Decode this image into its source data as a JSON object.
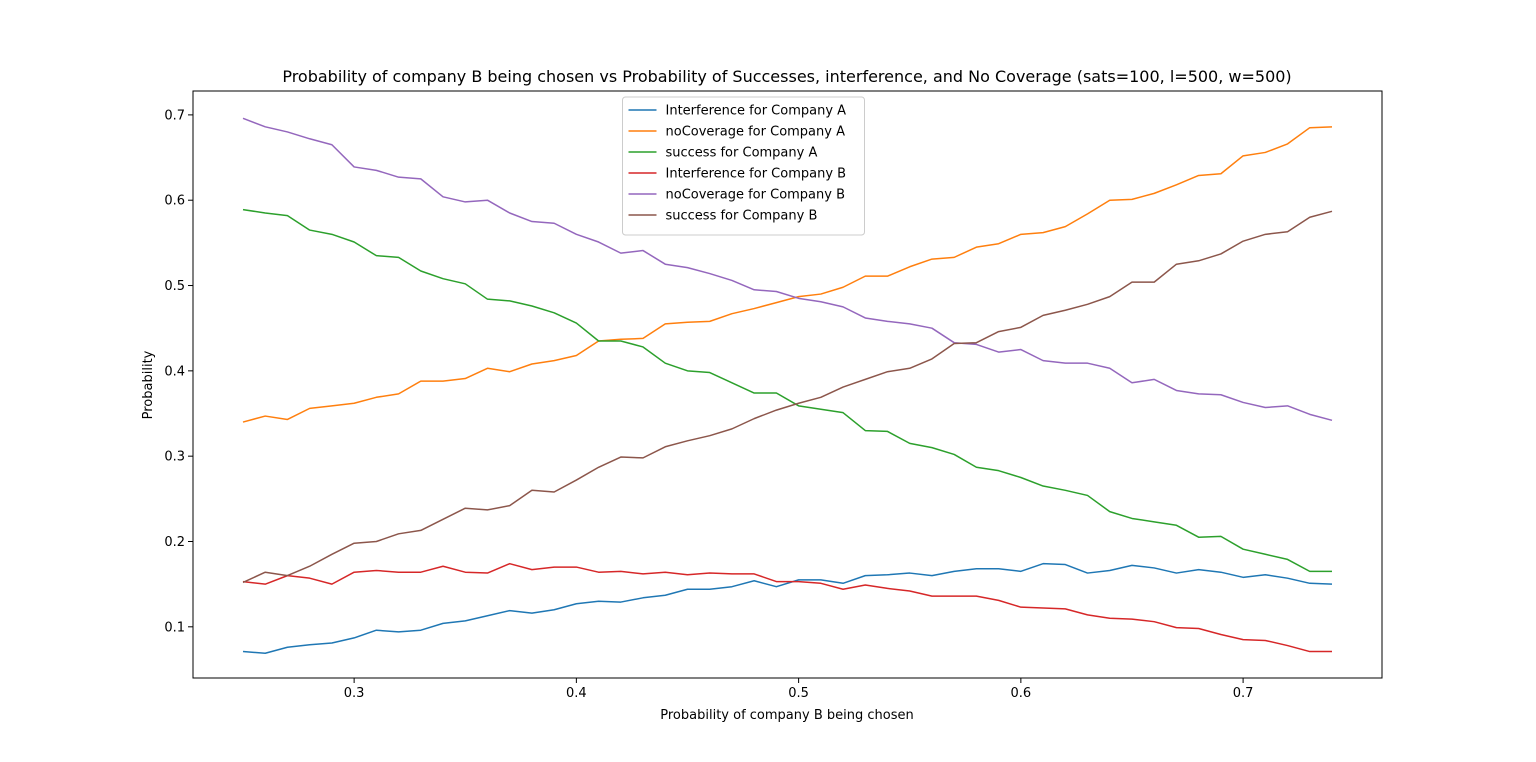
{
  "chart_data": {
    "type": "line",
    "title": "Probability of company B being chosen vs Probability of Successes, interference, and No Coverage (sats=100, l=500, w=500)",
    "xlabel": "Probability of company B being chosen",
    "ylabel": "Probability",
    "xlim": [
      0.2275,
      0.7625
    ],
    "ylim": [
      0.04,
      0.728
    ],
    "xticks": [
      0.3,
      0.4,
      0.5,
      0.6,
      0.7
    ],
    "xtick_labels": [
      "0.3",
      "0.4",
      "0.5",
      "0.6",
      "0.7"
    ],
    "yticks": [
      0.1,
      0.2,
      0.3,
      0.4,
      0.5,
      0.6,
      0.7
    ],
    "ytick_labels": [
      "0.1",
      "0.2",
      "0.3",
      "0.4",
      "0.5",
      "0.6",
      "0.7"
    ],
    "grid": false,
    "legend_position": "upper center",
    "x": [
      0.25,
      0.26,
      0.27,
      0.28,
      0.29,
      0.3,
      0.31,
      0.32,
      0.33,
      0.34,
      0.35,
      0.36,
      0.37,
      0.38,
      0.39,
      0.4,
      0.41,
      0.42,
      0.43,
      0.44,
      0.45,
      0.46,
      0.47,
      0.48,
      0.49,
      0.5,
      0.51,
      0.52,
      0.53,
      0.54,
      0.55,
      0.56,
      0.57,
      0.58,
      0.59,
      0.6,
      0.61,
      0.62,
      0.63,
      0.64,
      0.65,
      0.66,
      0.67,
      0.68,
      0.69,
      0.7,
      0.71,
      0.72,
      0.73,
      0.74
    ],
    "series": [
      {
        "name": "Interference for Company A",
        "color": "#1f77b4",
        "values": [
          0.071,
          0.069,
          0.076,
          0.079,
          0.081,
          0.087,
          0.096,
          0.094,
          0.096,
          0.104,
          0.107,
          0.113,
          0.119,
          0.116,
          0.12,
          0.127,
          0.13,
          0.129,
          0.134,
          0.137,
          0.144,
          0.144,
          0.147,
          0.154,
          0.147,
          0.155,
          0.155,
          0.151,
          0.16,
          0.161,
          0.163,
          0.16,
          0.165,
          0.168,
          0.168,
          0.165,
          0.174,
          0.173,
          0.163,
          0.166,
          0.172,
          0.169,
          0.163,
          0.167,
          0.164,
          0.158,
          0.161,
          0.157,
          0.151,
          0.15
        ]
      },
      {
        "name": "noCoverage for Company A",
        "color": "#ff7f0e",
        "values": [
          0.34,
          0.347,
          0.343,
          0.356,
          0.359,
          0.362,
          0.369,
          0.373,
          0.388,
          0.388,
          0.391,
          0.403,
          0.399,
          0.408,
          0.412,
          0.418,
          0.435,
          0.437,
          0.438,
          0.455,
          0.457,
          0.458,
          0.467,
          0.473,
          0.48,
          0.487,
          0.49,
          0.498,
          0.511,
          0.511,
          0.522,
          0.531,
          0.533,
          0.545,
          0.549,
          0.56,
          0.562,
          0.569,
          0.584,
          0.6,
          0.601,
          0.608,
          0.618,
          0.629,
          0.631,
          0.652,
          0.656,
          0.666,
          0.685,
          0.686
        ]
      },
      {
        "name": "success for Company A",
        "color": "#2ca02c",
        "values": [
          0.589,
          0.585,
          0.582,
          0.565,
          0.56,
          0.551,
          0.535,
          0.533,
          0.517,
          0.508,
          0.502,
          0.484,
          0.482,
          0.476,
          0.468,
          0.456,
          0.435,
          0.435,
          0.428,
          0.409,
          0.4,
          0.398,
          0.386,
          0.374,
          0.374,
          0.359,
          0.355,
          0.351,
          0.33,
          0.329,
          0.315,
          0.31,
          0.302,
          0.287,
          0.283,
          0.275,
          0.265,
          0.26,
          0.254,
          0.235,
          0.227,
          0.223,
          0.219,
          0.205,
          0.206,
          0.191,
          0.185,
          0.179,
          0.165,
          0.165
        ]
      },
      {
        "name": "Interference for Company B",
        "color": "#d62728",
        "values": [
          0.153,
          0.15,
          0.16,
          0.157,
          0.15,
          0.164,
          0.166,
          0.164,
          0.164,
          0.171,
          0.164,
          0.163,
          0.174,
          0.167,
          0.17,
          0.17,
          0.164,
          0.165,
          0.162,
          0.164,
          0.161,
          0.163,
          0.162,
          0.162,
          0.153,
          0.153,
          0.151,
          0.144,
          0.149,
          0.145,
          0.142,
          0.136,
          0.136,
          0.136,
          0.131,
          0.123,
          0.122,
          0.121,
          0.114,
          0.11,
          0.109,
          0.106,
          0.099,
          0.098,
          0.091,
          0.085,
          0.084,
          0.078,
          0.071,
          0.071
        ]
      },
      {
        "name": "noCoverage for Company B",
        "color": "#9467bd",
        "values": [
          0.696,
          0.686,
          0.68,
          0.672,
          0.665,
          0.639,
          0.635,
          0.627,
          0.625,
          0.604,
          0.598,
          0.6,
          0.585,
          0.575,
          0.573,
          0.56,
          0.551,
          0.538,
          0.541,
          0.525,
          0.521,
          0.514,
          0.506,
          0.495,
          0.493,
          0.485,
          0.481,
          0.475,
          0.462,
          0.458,
          0.455,
          0.45,
          0.433,
          0.431,
          0.422,
          0.425,
          0.412,
          0.409,
          0.409,
          0.403,
          0.386,
          0.39,
          0.377,
          0.373,
          0.372,
          0.363,
          0.357,
          0.359,
          0.349,
          0.342
        ]
      },
      {
        "name": "success for Company B",
        "color": "#8c564b",
        "values": [
          0.152,
          0.164,
          0.16,
          0.171,
          0.185,
          0.198,
          0.2,
          0.209,
          0.213,
          0.226,
          0.239,
          0.237,
          0.242,
          0.26,
          0.258,
          0.272,
          0.287,
          0.299,
          0.298,
          0.311,
          0.318,
          0.324,
          0.332,
          0.344,
          0.354,
          0.362,
          0.369,
          0.381,
          0.39,
          0.399,
          0.403,
          0.414,
          0.432,
          0.433,
          0.446,
          0.451,
          0.465,
          0.471,
          0.478,
          0.487,
          0.504,
          0.504,
          0.525,
          0.529,
          0.537,
          0.552,
          0.56,
          0.563,
          0.58,
          0.587
        ]
      }
    ]
  }
}
